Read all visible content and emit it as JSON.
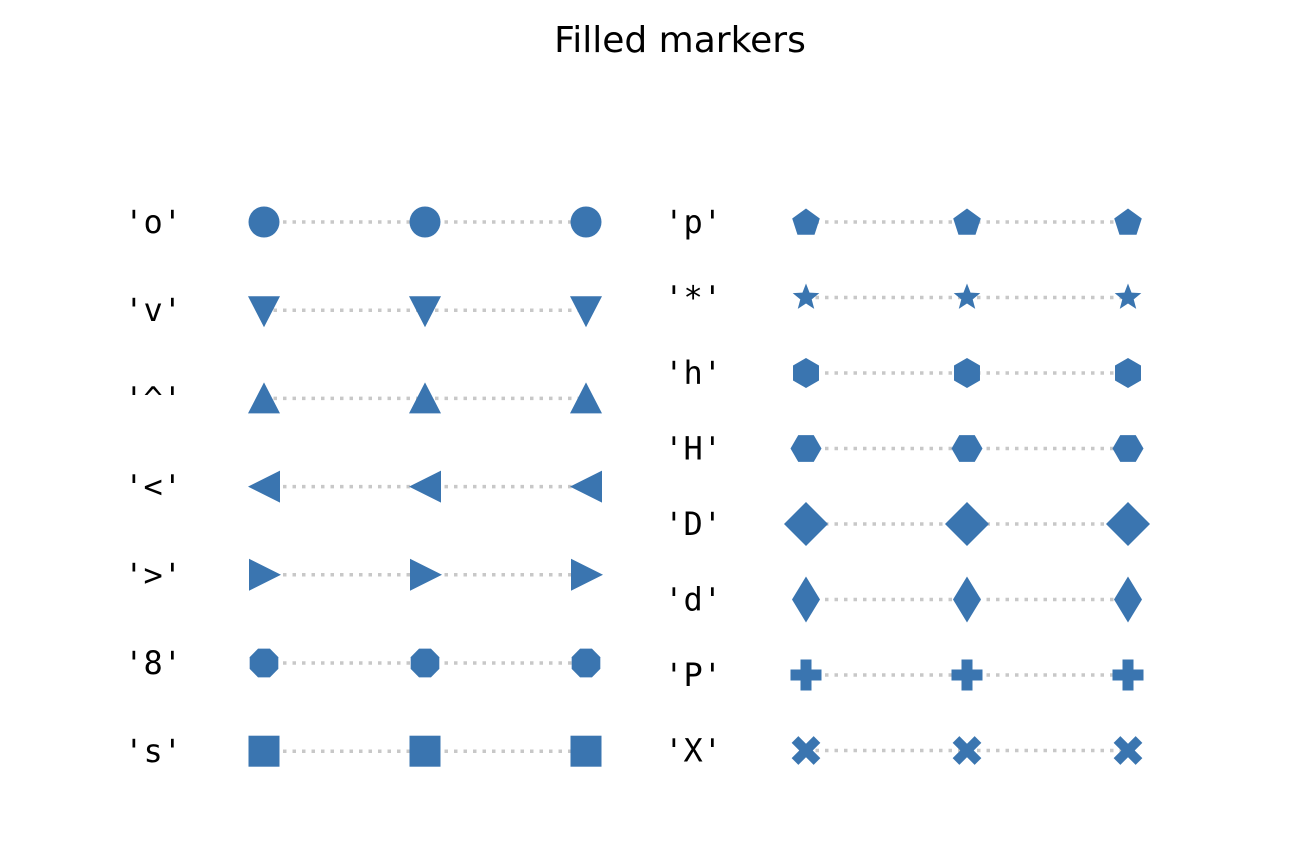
{
  "chart_data": {
    "type": "scatter",
    "title": "Filled markers",
    "marker_color": "#3a75b0",
    "guide_color": "#c8c8c8",
    "guide_style": "dotted",
    "points_per_row": 3,
    "axes_visible": false,
    "panels": [
      {
        "rows": [
          {
            "label": "'o'",
            "marker": "circle"
          },
          {
            "label": "'v'",
            "marker": "triangle-down"
          },
          {
            "label": "'^'",
            "marker": "triangle-up"
          },
          {
            "label": "'<'",
            "marker": "triangle-left"
          },
          {
            "label": "'>'",
            "marker": "triangle-right"
          },
          {
            "label": "'8'",
            "marker": "octagon"
          },
          {
            "label": "'s'",
            "marker": "square"
          }
        ]
      },
      {
        "rows": [
          {
            "label": "'p'",
            "marker": "pentagon"
          },
          {
            "label": "'*'",
            "marker": "star"
          },
          {
            "label": "'h'",
            "marker": "hexagon-vertical"
          },
          {
            "label": "'H'",
            "marker": "hexagon-horizontal"
          },
          {
            "label": "'D'",
            "marker": "diamond"
          },
          {
            "label": "'d'",
            "marker": "thin-diamond"
          },
          {
            "label": "'P'",
            "marker": "plus-filled"
          },
          {
            "label": "'X'",
            "marker": "x-filled"
          }
        ]
      }
    ]
  }
}
